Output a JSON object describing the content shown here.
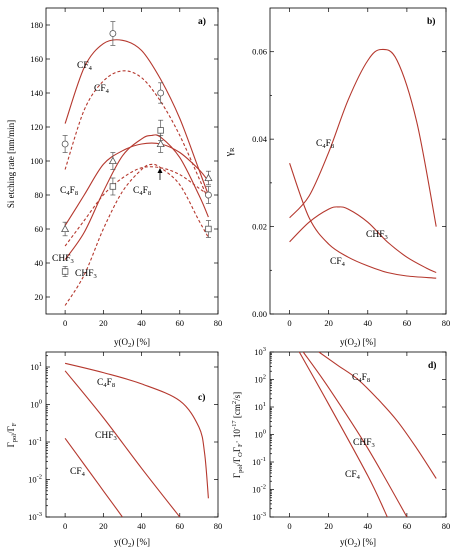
{
  "chart_data": [
    {
      "panel": "a)",
      "type": "line",
      "ylabel": "Si etching rate [nm/min]",
      "xlabel": "y(O2) [%]",
      "xlim": [
        -10,
        80
      ],
      "ylim": [
        10,
        190
      ],
      "xticks": [
        0,
        20,
        40,
        60,
        80
      ],
      "yticks": [
        20,
        40,
        60,
        80,
        100,
        120,
        140,
        160,
        180
      ],
      "measured": [
        {
          "name": "CF4",
          "marker": "circle",
          "x": [
            0,
            25,
            50,
            75
          ],
          "y": [
            110,
            175,
            140,
            80
          ],
          "err": [
            5,
            7,
            6,
            5
          ]
        },
        {
          "name": "C4F8",
          "marker": "triangle",
          "x": [
            0,
            25,
            50,
            75
          ],
          "y": [
            60,
            100,
            110,
            90
          ],
          "err": [
            4,
            5,
            5,
            4
          ]
        },
        {
          "name": "CHF3",
          "marker": "square",
          "x": [
            0,
            25,
            50,
            75
          ],
          "y": [
            35,
            85,
            118,
            60
          ],
          "err": [
            3,
            5,
            6,
            5
          ]
        }
      ],
      "curves": [
        {
          "name": "CF4",
          "style": "solid",
          "x": [
            0,
            10,
            20,
            30,
            40,
            50,
            60,
            70,
            75
          ],
          "y": [
            122,
            155,
            169,
            171,
            165,
            148,
            125,
            95,
            80
          ]
        },
        {
          "name": "CF4",
          "style": "dashed",
          "x": [
            0,
            10,
            20,
            30,
            40,
            50,
            60,
            70,
            75
          ],
          "y": [
            95,
            130,
            147,
            153,
            149,
            135,
            115,
            90,
            77
          ]
        },
        {
          "name": "C4F8",
          "style": "solid",
          "x": [
            0,
            10,
            20,
            30,
            40,
            50,
            60,
            70,
            75
          ],
          "y": [
            62,
            80,
            98,
            106,
            110,
            110,
            105,
            95,
            88
          ]
        },
        {
          "name": "CHF3",
          "style": "solid",
          "x": [
            0,
            10,
            20,
            30,
            40,
            45,
            50,
            60,
            70,
            75
          ],
          "y": [
            42,
            58,
            82,
            103,
            113,
            115,
            114,
            102,
            80,
            67
          ]
        },
        {
          "name": "C4F8",
          "style": "dashed",
          "x": [
            0,
            10,
            20,
            30,
            40,
            50,
            60,
            70,
            75
          ],
          "y": [
            50,
            65,
            80,
            90,
            96,
            96,
            92,
            84,
            80
          ]
        },
        {
          "name": "CHF3",
          "style": "dashed",
          "x": [
            0,
            10,
            20,
            30,
            40,
            45,
            50,
            60,
            70,
            75
          ],
          "y": [
            15,
            33,
            60,
            82,
            95,
            98,
            96,
            86,
            65,
            55
          ]
        }
      ],
      "labels": [
        "CF",
        "CF",
        "C",
        "F",
        "C",
        "F",
        "CHF",
        "CHF"
      ]
    },
    {
      "panel": "b)",
      "type": "line",
      "ylabel": "γR",
      "xlabel": "y(O2) [%]",
      "xlim": [
        -10,
        80
      ],
      "ylim": [
        0,
        0.07
      ],
      "xticks": [
        0,
        20,
        40,
        60,
        80
      ],
      "yticks": [
        "0.00",
        "0.02",
        "0.04",
        "0.06"
      ],
      "curves": [
        {
          "name": "C4F8",
          "x": [
            0,
            10,
            20,
            30,
            40,
            47,
            55,
            65,
            75
          ],
          "y": [
            0.022,
            0.027,
            0.037,
            0.049,
            0.058,
            0.0605,
            0.058,
            0.044,
            0.02
          ]
        },
        {
          "name": "CHF3",
          "x": [
            0,
            10,
            20,
            25,
            30,
            40,
            50,
            60,
            70,
            75
          ],
          "y": [
            0.0165,
            0.021,
            0.024,
            0.0245,
            0.024,
            0.021,
            0.0165,
            0.013,
            0.0105,
            0.0095
          ]
        },
        {
          "name": "CF4",
          "x": [
            0,
            10,
            20,
            30,
            40,
            50,
            60,
            75
          ],
          "y": [
            0.0345,
            0.022,
            0.016,
            0.013,
            0.011,
            0.0095,
            0.0087,
            0.0082
          ]
        }
      ]
    },
    {
      "panel": "c)",
      "type": "line",
      "xlabel": "y(O2) [%]",
      "xlim": [
        -10,
        80
      ],
      "ylim_log10": [
        -3,
        1.4
      ],
      "xticks": [
        0,
        20,
        40,
        60,
        80
      ],
      "yticks": [
        "10-3",
        "10-2",
        "10-1",
        "100",
        "101"
      ],
      "curves": [
        {
          "name": "C4F8",
          "x": [
            0,
            20,
            40,
            60,
            70,
            73,
            75
          ],
          "y": [
            1.1,
            0.85,
            0.55,
            0.1,
            -0.6,
            -1.3,
            -2.5
          ]
        },
        {
          "name": "CHF3",
          "x": [
            0,
            20,
            40,
            60
          ],
          "y": [
            0.9,
            -0.35,
            -1.7,
            -3.0
          ]
        },
        {
          "name": "CF4",
          "x": [
            0,
            10,
            20,
            30
          ],
          "y": [
            -0.9,
            -1.6,
            -2.3,
            -3.0
          ]
        }
      ]
    },
    {
      "panel": "d)",
      "type": "line",
      "xlabel": "y(O2) [%]",
      "xlim": [
        -10,
        80
      ],
      "ylim_log10": [
        -3,
        3
      ],
      "xticks": [
        0,
        20,
        40,
        60,
        80
      ],
      "yticks": [
        "10-3",
        "10-2",
        "10-1",
        "100",
        "101",
        "102",
        "103"
      ],
      "curves": [
        {
          "name": "C4F8",
          "x": [
            15,
            25,
            35,
            45,
            55,
            65,
            75
          ],
          "y": [
            3,
            2.5,
            2,
            1.3,
            0.5,
            -0.5,
            -1.6
          ]
        },
        {
          "name": "CHF3",
          "x": [
            7,
            20,
            40,
            60
          ],
          "y": [
            3,
            1.7,
            -0.5,
            -3
          ]
        },
        {
          "name": "CF4",
          "x": [
            5,
            20,
            40,
            50
          ],
          "y": [
            3,
            1.1,
            -1.5,
            -3
          ]
        }
      ]
    }
  ]
}
